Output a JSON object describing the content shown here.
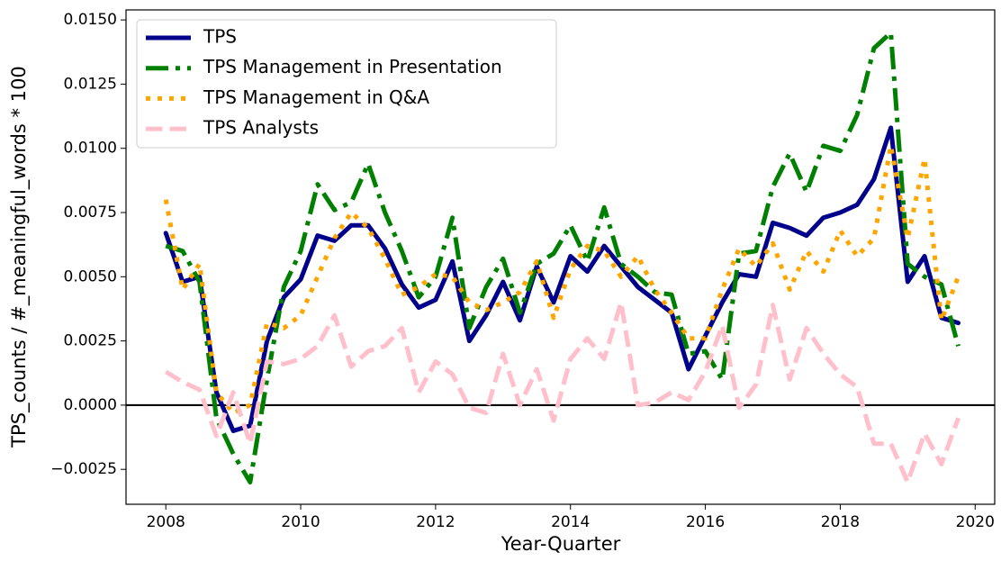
{
  "chart_data": {
    "type": "line",
    "xlabel": "Year-Quarter",
    "ylabel": "TPS_counts / #_meaningful_words * 100",
    "x": [
      2008,
      2008.25,
      2008.5,
      2008.75,
      2009,
      2009.25,
      2009.5,
      2009.75,
      2010,
      2010.25,
      2010.5,
      2010.75,
      2011,
      2011.25,
      2011.5,
      2011.75,
      2012,
      2012.25,
      2012.5,
      2012.75,
      2013,
      2013.25,
      2013.5,
      2013.75,
      2014,
      2014.25,
      2014.5,
      2014.75,
      2015,
      2015.25,
      2015.5,
      2015.75,
      2016,
      2016.25,
      2016.5,
      2016.75,
      2017,
      2017.25,
      2017.5,
      2017.75,
      2018,
      2018.25,
      2018.5,
      2018.75,
      2019,
      2019.25,
      2019.5,
      2019.75
    ],
    "series": [
      {
        "name": "TPS",
        "color": "#00008b",
        "style": "solid",
        "values": [
          0.0067,
          0.0048,
          0.005,
          0.0005,
          -0.001,
          -0.0008,
          0.0025,
          0.0042,
          0.0049,
          0.0066,
          0.0064,
          0.007,
          0.007,
          0.0061,
          0.0047,
          0.0038,
          0.0041,
          0.0056,
          0.0025,
          0.0035,
          0.0048,
          0.0033,
          0.0054,
          0.004,
          0.0058,
          0.0052,
          0.0062,
          0.0054,
          0.0046,
          0.0041,
          0.0036,
          0.0014,
          0.0027,
          0.004,
          0.0051,
          0.005,
          0.0071,
          0.0069,
          0.0066,
          0.0073,
          0.0075,
          0.0078,
          0.0088,
          0.0108,
          0.0048,
          0.0058,
          0.0034,
          0.0032
        ]
      },
      {
        "name": "TPS Management in Presentation",
        "color": "#008000",
        "style": "dashdot",
        "values": [
          0.0062,
          0.006,
          0.0048,
          -0.0005,
          -0.0019,
          -0.003,
          0.001,
          0.0046,
          0.006,
          0.0086,
          0.0076,
          0.0079,
          0.0094,
          0.0075,
          0.006,
          0.0042,
          0.005,
          0.0073,
          0.003,
          0.0046,
          0.0057,
          0.0036,
          0.0055,
          0.0059,
          0.007,
          0.0056,
          0.0077,
          0.0055,
          0.005,
          0.0044,
          0.0043,
          0.002,
          0.0021,
          0.001,
          0.0059,
          0.006,
          0.0085,
          0.0098,
          0.0083,
          0.0101,
          0.0099,
          0.0113,
          0.0139,
          0.0145,
          0.0055,
          0.005,
          0.0047,
          0.0023
        ]
      },
      {
        "name": "TPS Management in Q&A",
        "color": "#ffa500",
        "style": "dotted",
        "values": [
          0.008,
          0.0045,
          0.0055,
          0.0005,
          -0.0003,
          0.0,
          0.0032,
          0.003,
          0.0035,
          0.005,
          0.0065,
          0.0075,
          0.0069,
          0.0057,
          0.0043,
          0.0046,
          0.0051,
          0.005,
          0.004,
          0.0037,
          0.004,
          0.0044,
          0.0056,
          0.0034,
          0.0053,
          0.0062,
          0.006,
          0.005,
          0.0058,
          0.0045,
          0.0036,
          0.0026,
          0.0026,
          0.0045,
          0.0061,
          0.0054,
          0.0063,
          0.0045,
          0.006,
          0.0052,
          0.0068,
          0.0058,
          0.0065,
          0.0101,
          0.0065,
          0.0096,
          0.0033,
          0.005
        ]
      },
      {
        "name": "TPS Analysts",
        "color": "#ffc0cb",
        "style": "dashed",
        "values": [
          0.0013,
          0.0009,
          0.0006,
          -0.0012,
          0.0005,
          -0.0015,
          0.0017,
          0.0016,
          0.0018,
          0.0023,
          0.0035,
          0.0015,
          0.0021,
          0.0023,
          0.003,
          0.0005,
          0.0017,
          0.0012,
          -0.0001,
          -0.0003,
          0.002,
          0.0,
          0.0014,
          -0.0006,
          0.0018,
          0.0026,
          0.0018,
          0.004,
          0.0,
          0.0001,
          0.0005,
          0.0002,
          0.0013,
          0.0031,
          -0.0001,
          0.0008,
          0.0039,
          0.001,
          0.003,
          0.002,
          0.0012,
          0.0007,
          -0.0015,
          -0.0015,
          -0.003,
          -0.0011,
          -0.0023,
          -0.0005
        ]
      }
    ],
    "xlim": [
      2007.41,
      2020.29
    ],
    "xticks": [
      2008,
      2010,
      2012,
      2014,
      2016,
      2018,
      2020
    ],
    "ylim": [
      -0.00386,
      0.01539
    ],
    "yticks": [
      {
        "value": -0.0025,
        "label": "−0.0025"
      },
      {
        "value": 0,
        "label": "0.0000"
      },
      {
        "value": 0.0025,
        "label": "0.0025"
      },
      {
        "value": 0.005,
        "label": "0.0050"
      },
      {
        "value": 0.0075,
        "label": "0.0075"
      },
      {
        "value": 0.01,
        "label": "0.0100"
      },
      {
        "value": 0.0125,
        "label": "0.0125"
      },
      {
        "value": 0.015,
        "label": "0.0150"
      }
    ],
    "hline": 0,
    "grid": false,
    "legend": "upper left"
  }
}
